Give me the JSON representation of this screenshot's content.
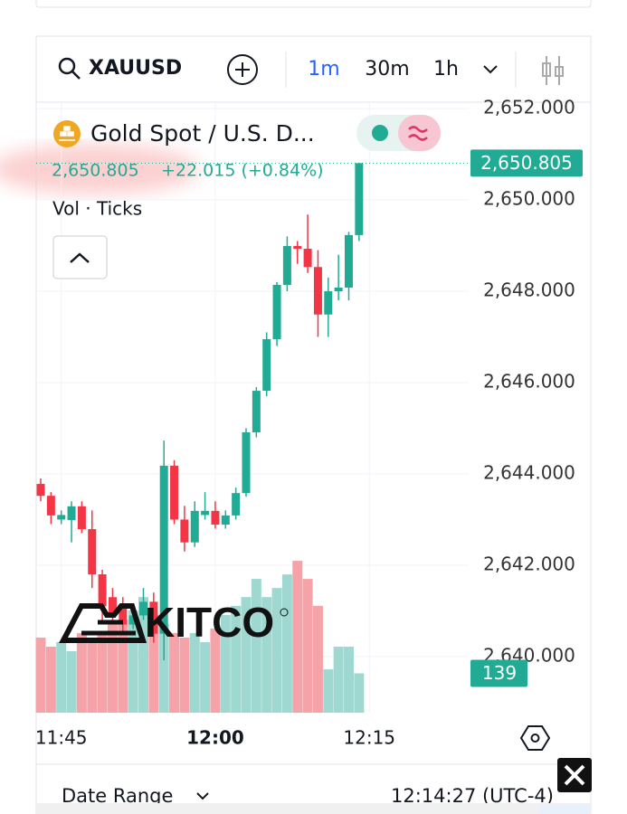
{
  "toolbar": {
    "symbol": "XAUUSD",
    "intervals": [
      "1m",
      "30m",
      "1h"
    ]
  },
  "legend": {
    "name": "Gold Spot / U.S. D...",
    "change": "+22.015 (+0.84%)",
    "indicator": "Vol · Ticks"
  },
  "watermark": "KITCO",
  "footer": {
    "date_range": "Date Range",
    "time": "12:14:27 (UTC-4)"
  },
  "chart_data": {
    "type": "candlestick",
    "categories": [
      null,
      null,
      "11:45",
      null,
      null,
      null,
      null,
      null,
      null,
      null,
      null,
      null,
      null,
      null,
      null,
      null,
      null,
      "12:00",
      null,
      null,
      null,
      null,
      null,
      null,
      null,
      null,
      null,
      null,
      null,
      null,
      null,
      null,
      "12:15"
    ],
    "open": [
      2643.78,
      2643.52,
      2643.0,
      2642.99,
      2643.29,
      2642.79,
      2641.8,
      2641.3,
      2641.1,
      2640.7,
      2640.9,
      2641.2,
      2640.5,
      2644.18,
      2643.0,
      2642.5,
      2643.1,
      2643.19,
      2642.89,
      2643.09,
      2643.58,
      2644.91,
      2645.82,
      2646.95,
      2648.14,
      2648.99,
      2648.93,
      2648.53,
      2647.49,
      2648.0,
      2648.08,
      2649.23,
      null
    ],
    "high": [
      2643.9,
      2643.6,
      2643.2,
      2643.4,
      2643.4,
      2643.2,
      2641.9,
      2641.5,
      2641.3,
      2641.0,
      2641.5,
      2641.4,
      2644.73,
      2644.3,
      2643.3,
      2643.4,
      2643.6,
      2643.4,
      2643.2,
      2643.7,
      2645.0,
      2645.9,
      2647.1,
      2648.2,
      2649.2,
      2649.1,
      2649.68,
      2648.9,
      2648.3,
      2648.8,
      2649.3,
      2650.81,
      null
    ],
    "low": [
      2643.4,
      2642.9,
      2642.9,
      2642.5,
      2642.7,
      2641.5,
      2640.8,
      2640.7,
      2640.5,
      2640.6,
      2640.8,
      2640.3,
      2639.92,
      2642.9,
      2642.3,
      2642.4,
      2643.0,
      2642.8,
      2642.8,
      2643.0,
      2643.5,
      2644.8,
      2645.7,
      2646.8,
      2648.0,
      2648.6,
      2648.4,
      2647.0,
      2647.0,
      2647.8,
      2647.8,
      2649.1,
      null
    ],
    "close": [
      2643.52,
      2643.09,
      2643.1,
      2643.29,
      2642.79,
      2641.8,
      2641.1,
      2640.9,
      2640.7,
      2640.9,
      2641.2,
      2640.5,
      2644.18,
      2643.0,
      2642.5,
      2643.19,
      2643.19,
      2642.89,
      2643.09,
      2643.58,
      2644.91,
      2645.82,
      2646.95,
      2648.14,
      2648.99,
      2648.93,
      2648.53,
      2647.49,
      2648.0,
      2648.08,
      2649.23,
      2650.805,
      null
    ],
    "volume": [
      265,
      233,
      249,
      217,
      281,
      265,
      281,
      313,
      329,
      361,
      408,
      345,
      313,
      281,
      265,
      281,
      249,
      297,
      345,
      377,
      408,
      472,
      408,
      440,
      488,
      536,
      472,
      377,
      153,
      233,
      233,
      139,
      null
    ],
    "ylim": [
      2638.77,
      2652.14
    ],
    "yticks": [
      {
        "value": 2640,
        "label": "2,640.000"
      },
      {
        "value": 2642,
        "label": "2,642.000"
      },
      {
        "value": 2644,
        "label": "2,644.000"
      },
      {
        "value": 2646,
        "label": "2,646.000"
      },
      {
        "value": 2648,
        "label": "2,648.000"
      },
      {
        "value": 2650,
        "label": "2,650.000"
      },
      {
        "value": 2652,
        "label": "2,652.000"
      }
    ],
    "vlim": [
      0,
      600
    ],
    "last_price": {
      "value": 2650.805,
      "label": "2,650.805"
    },
    "up_color": "#22ab94",
    "down_color": "#f23645",
    "up_volume_color": "#9fd8d0",
    "down_volume_color": "#f5a3a8",
    "grid": true
  }
}
